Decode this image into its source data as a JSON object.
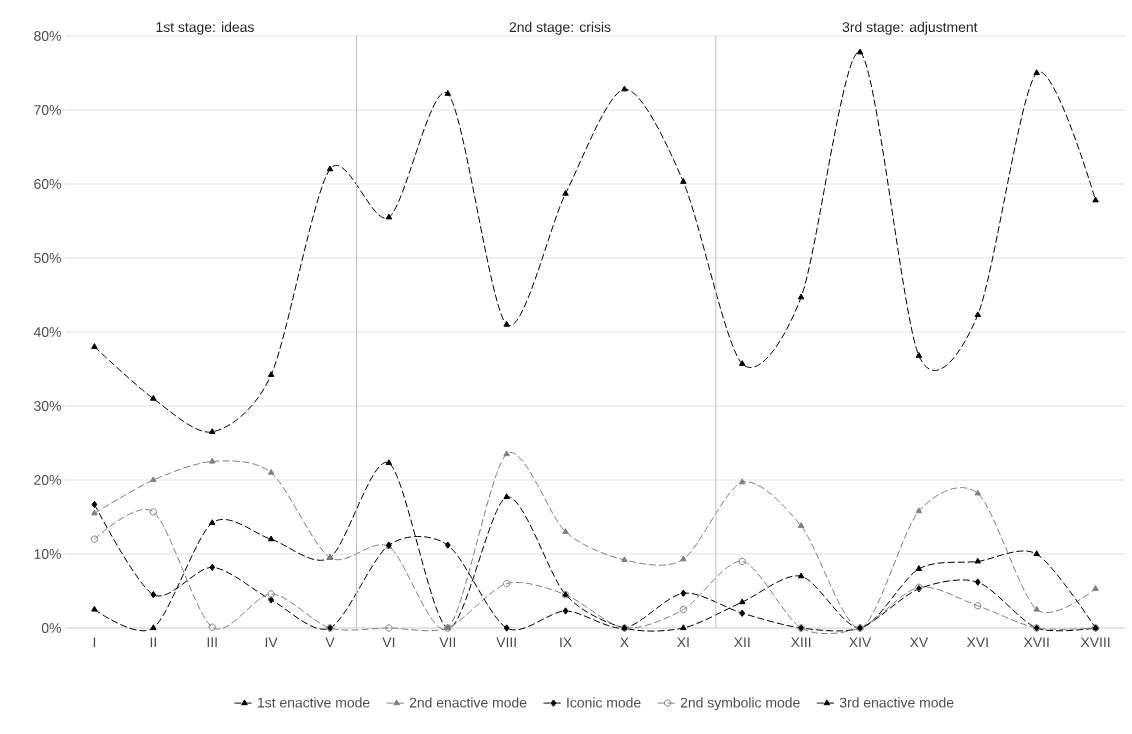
{
  "chart_data": {
    "type": "line",
    "categories": [
      "I",
      "II",
      "III",
      "IV",
      "V",
      "VI",
      "VII",
      "VIII",
      "IX",
      "X",
      "XI",
      "XII",
      "XIII",
      "XIV",
      "XV",
      "XVI",
      "XVII",
      "XVIII"
    ],
    "series": [
      {
        "name": "1st enactive mode",
        "color": "#000000",
        "marker": "triangle",
        "line_style": "dashed",
        "values": [
          2.5,
          0,
          14.2,
          12,
          9.5,
          22.3,
          0,
          17.7,
          4.5,
          0,
          0,
          3.5,
          7,
          0,
          8,
          9,
          10,
          0
        ]
      },
      {
        "name": "2nd enactive mode",
        "color": "#808080",
        "marker": "triangle",
        "line_style": "dashed",
        "values": [
          15.5,
          20,
          22.5,
          21,
          9.5,
          11,
          0,
          23.5,
          13,
          9.2,
          9.3,
          19.7,
          13.8,
          0,
          15.8,
          18.2,
          2.5,
          5.3
        ]
      },
      {
        "name": "Iconic mode",
        "color": "#000000",
        "marker": "diamond",
        "line_style": "dashed",
        "values": [
          16.7,
          4.5,
          8.2,
          3.8,
          0,
          11.2,
          11.2,
          0,
          2.3,
          0,
          4.7,
          2,
          0,
          0,
          5.3,
          6.2,
          0,
          0
        ]
      },
      {
        "name": "2nd symbolic mode",
        "color": "#808080",
        "marker": "circle",
        "line_style": "dashed",
        "values": [
          12,
          15.7,
          0.1,
          4.6,
          0,
          0,
          0,
          6,
          4.5,
          0,
          2.5,
          9,
          0,
          0,
          5.5,
          3,
          0,
          0
        ]
      },
      {
        "name": "3rd enactive mode",
        "color": "#000000",
        "marker": "triangle",
        "line_style": "dashed",
        "values": [
          38,
          31,
          26.5,
          34.2,
          62,
          55.5,
          72.2,
          41,
          58.7,
          72.8,
          60.3,
          35.7,
          44.7,
          77.8,
          36.8,
          42.3,
          75,
          57.8
        ]
      }
    ],
    "ylim": [
      0,
      80
    ],
    "yticks": [
      {
        "value": 0,
        "label": "0%"
      },
      {
        "value": 10,
        "label": "10%"
      },
      {
        "value": 20,
        "label": "20%"
      },
      {
        "value": 30,
        "label": "30%"
      },
      {
        "value": 40,
        "label": "40%"
      },
      {
        "value": 50,
        "label": "50%"
      },
      {
        "value": 60,
        "label": "60%"
      },
      {
        "value": 70,
        "label": "70%"
      },
      {
        "value": 80,
        "label": "80%"
      }
    ],
    "annotations": [
      "1st stage: ideas",
      "2nd stage: crisis",
      "3rd stage: adjustment"
    ],
    "grid": "y",
    "legend": "bottom"
  }
}
